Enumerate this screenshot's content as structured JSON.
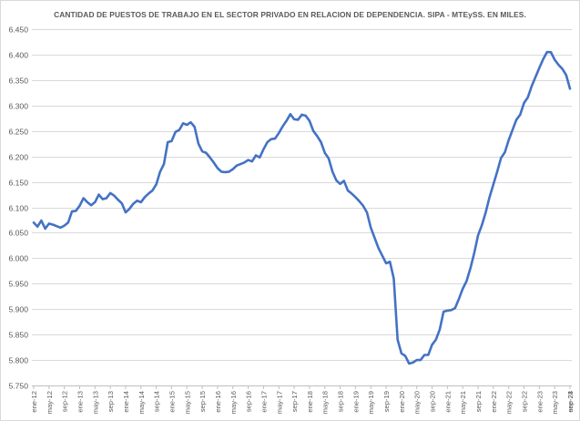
{
  "chart_data": {
    "type": "line",
    "title": "CANTIDAD DE PUESTOS DE TRABAJO EN EL SECTOR PRIVADO EN RELACION DE DEPENDENCIA. SIPA - MTEySS. EN MILES.",
    "xlabel": "",
    "ylabel": "",
    "ylim": [
      5750,
      6450
    ],
    "yticks": [
      5750,
      5800,
      5850,
      5900,
      5950,
      6000,
      6050,
      6100,
      6150,
      6200,
      6250,
      6300,
      6350,
      6400,
      6450
    ],
    "ytick_labels": [
      "5.750",
      "5.800",
      "5.850",
      "5.900",
      "5.950",
      "6.000",
      "6.050",
      "6.100",
      "6.150",
      "6.200",
      "6.250",
      "6.300",
      "6.350",
      "6.400",
      "6.450"
    ],
    "grid": true,
    "legend": "none",
    "line_color": "#4472c4",
    "x_labels": [
      "ene-12",
      "may-12",
      "sep-12",
      "ene-13",
      "may-13",
      "sep-13",
      "ene-14",
      "may-14",
      "sep-14",
      "ene-15",
      "may-15",
      "sep-15",
      "ene-16",
      "may-16",
      "sep-16",
      "ene-17",
      "may-17",
      "sep-17",
      "ene-18",
      "may-18",
      "sep-18",
      "ene-19",
      "may-19",
      "sep-19",
      "ene-20",
      "may-20",
      "sep-20",
      "ene-21",
      "may-21",
      "sep-21",
      "ene-22",
      "may-22",
      "sep-22",
      "ene-23",
      "may-23",
      "sep-23",
      "ene-24"
    ],
    "series": [
      {
        "values": [
          6070,
          6062,
          6074,
          6058,
          6068,
          6066,
          6063,
          6060,
          6064,
          6070,
          6092,
          6093,
          6103,
          6118,
          6110,
          6104,
          6110,
          6125,
          6116,
          6118,
          6128,
          6123,
          6115,
          6108,
          6090,
          6097,
          6107,
          6113,
          6110,
          6120,
          6127,
          6133,
          6145,
          6170,
          6185,
          6228,
          6230,
          6248,
          6252,
          6265,
          6262,
          6267,
          6258,
          6225,
          6210,
          6207,
          6198,
          6188,
          6177,
          6170,
          6169,
          6170,
          6175,
          6182,
          6185,
          6188,
          6193,
          6190,
          6202,
          6198,
          6214,
          6228,
          6234,
          6235,
          6246,
          6259,
          6270,
          6283,
          6273,
          6272,
          6282,
          6280,
          6270,
          6250,
          6240,
          6228,
          6207,
          6196,
          6170,
          6153,
          6146,
          6152,
          6133,
          6127,
          6120,
          6112,
          6103,
          6090,
          6060,
          6040,
          6020,
          6005,
          5990,
          5993,
          5960,
          5840,
          5813,
          5808,
          5793,
          5795,
          5800,
          5800,
          5810,
          5810,
          5830,
          5840,
          5860,
          5895,
          5897,
          5898,
          5902,
          5920,
          5940,
          5955,
          5980,
          6010,
          6045,
          6065,
          6090,
          6120,
          6145,
          6170,
          6197,
          6208,
          6232,
          6252,
          6272,
          6282,
          6305,
          6316,
          6338,
          6356,
          6374,
          6391,
          6405,
          6405,
          6390,
          6380,
          6372,
          6360,
          6333
        ]
      }
    ]
  }
}
